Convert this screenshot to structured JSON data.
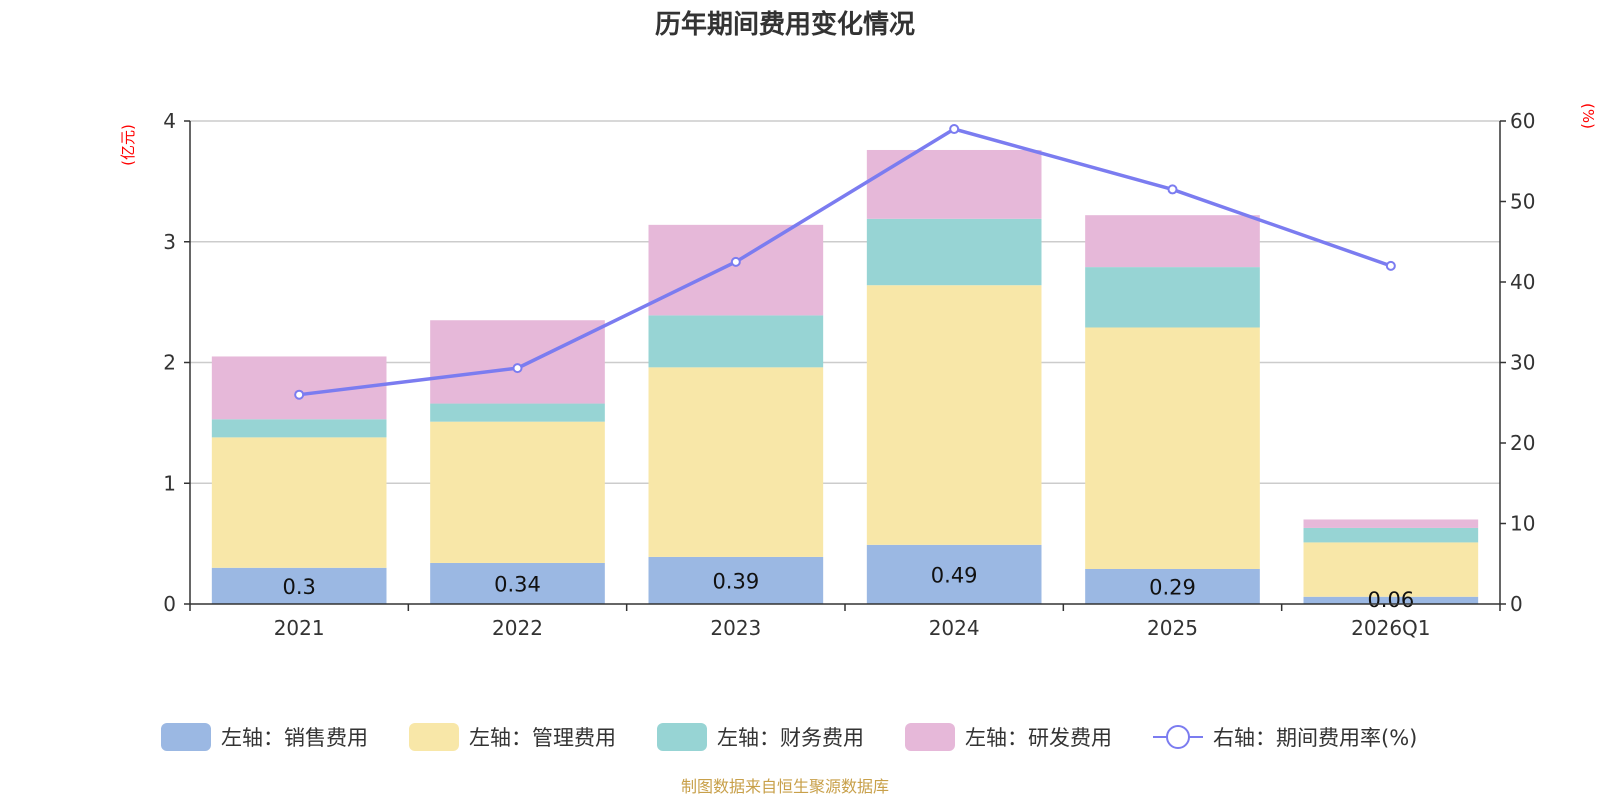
{
  "chart_data": {
    "type": "bar",
    "stacked": true,
    "title": "历年期间费用变化情况",
    "categories": [
      "2021",
      "2022",
      "2023",
      "2024",
      "2025",
      "2026Q1"
    ],
    "left_axis": {
      "unit": "(亿元)",
      "ylim": [
        0,
        4
      ],
      "ticks": [
        0,
        1,
        2,
        3,
        4
      ]
    },
    "right_axis": {
      "unit": "(%)",
      "ylim": [
        0,
        60
      ],
      "ticks": [
        0,
        10,
        20,
        30,
        40,
        50,
        60
      ]
    },
    "series": [
      {
        "name": "左轴：销售费用",
        "axis": "left",
        "color": "#9bb8e3",
        "values": [
          0.3,
          0.34,
          0.39,
          0.49,
          0.29,
          0.06
        ],
        "labels": [
          "0.3",
          "0.34",
          "0.39",
          "0.49",
          "0.29",
          "0.06"
        ]
      },
      {
        "name": "左轴：管理费用",
        "axis": "left",
        "color": "#f8e7a8",
        "values": [
          1.08,
          1.17,
          1.57,
          2.15,
          2.0,
          0.45
        ]
      },
      {
        "name": "左轴：财务费用",
        "axis": "left",
        "color": "#97d4d4",
        "values": [
          0.15,
          0.15,
          0.43,
          0.55,
          0.5,
          0.12
        ]
      },
      {
        "name": "左轴：研发费用",
        "axis": "left",
        "color": "#e6b8d9",
        "values": [
          0.52,
          0.69,
          0.75,
          0.57,
          0.43,
          0.07
        ]
      },
      {
        "name": "右轴：期间费用率(%)",
        "axis": "right",
        "type": "line",
        "color": "#7b7cf0",
        "values": [
          26.0,
          29.3,
          42.5,
          59.0,
          51.5,
          42.0
        ]
      }
    ],
    "grid": true,
    "legend_position": "bottom"
  },
  "source": "制图数据来自恒生聚源数据库"
}
